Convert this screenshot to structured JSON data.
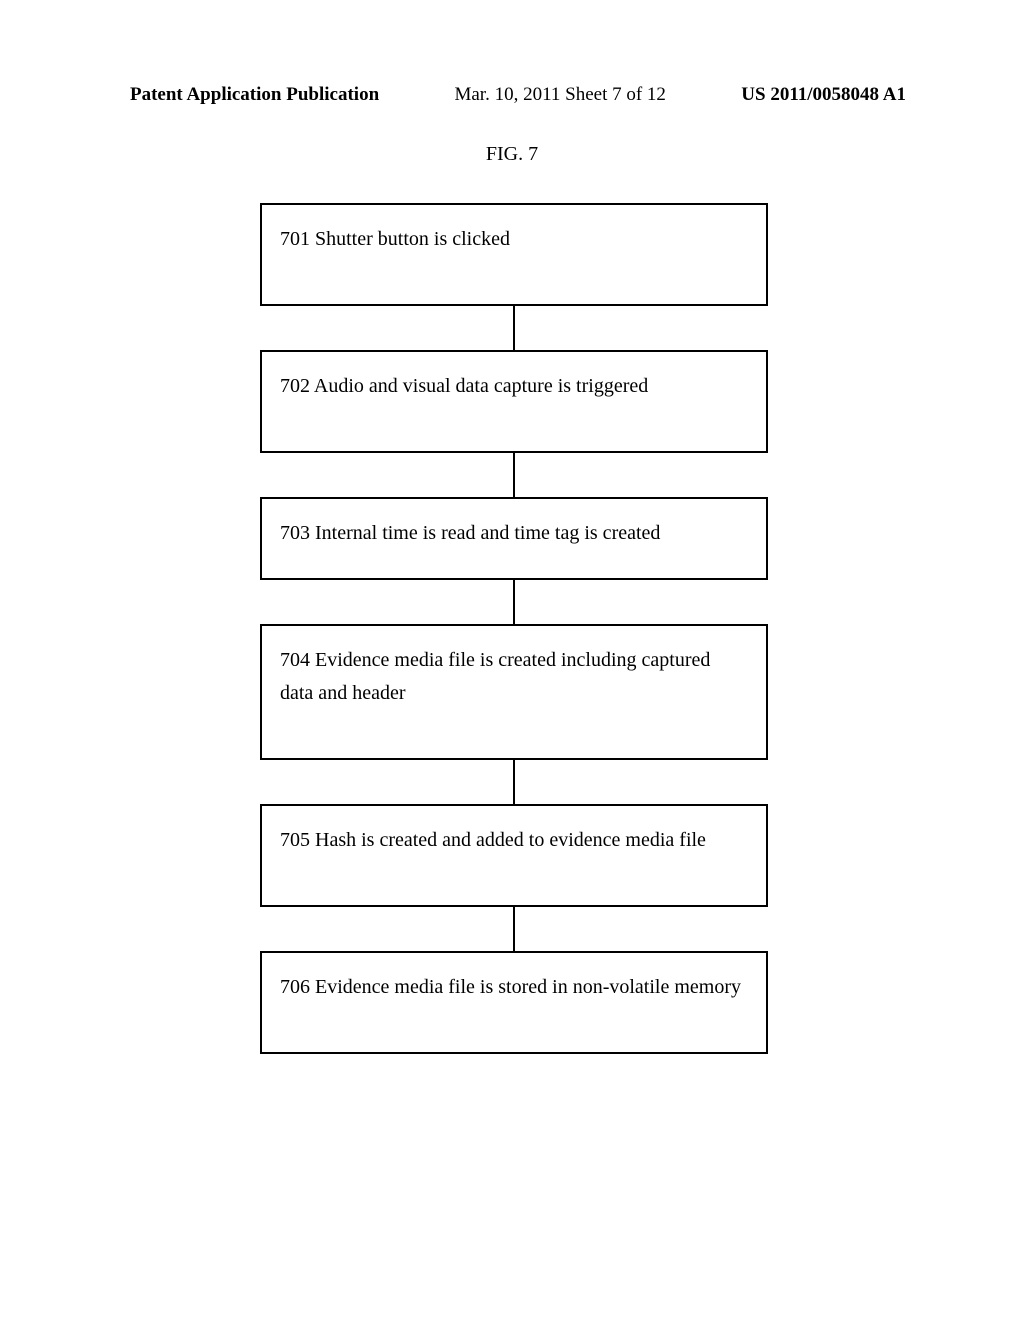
{
  "header": {
    "leftText": "Patent Application Publication",
    "centerText": "Mar. 10, 2011  Sheet 7 of 12",
    "rightText": "US 2011/0058048 A1"
  },
  "figure": {
    "label": "FIG. 7",
    "type": "flowchart",
    "box_border_color": "#000000",
    "background_color": "#ffffff",
    "text_color": "#000000",
    "font_family": "Times New Roman",
    "font_size_pt": 15,
    "steps": [
      {
        "ref": "701",
        "text": "701 Shutter button is clicked"
      },
      {
        "ref": "702",
        "text": "702 Audio and visual data capture is triggered"
      },
      {
        "ref": "703",
        "text": "703 Internal time is read and time tag is created"
      },
      {
        "ref": "704",
        "text": "704 Evidence media file is created including captured data and header"
      },
      {
        "ref": "705",
        "text": "705 Hash is created and added to evidence media file"
      },
      {
        "ref": "706",
        "text": "706 Evidence media file is stored in non-volatile memory"
      }
    ]
  }
}
